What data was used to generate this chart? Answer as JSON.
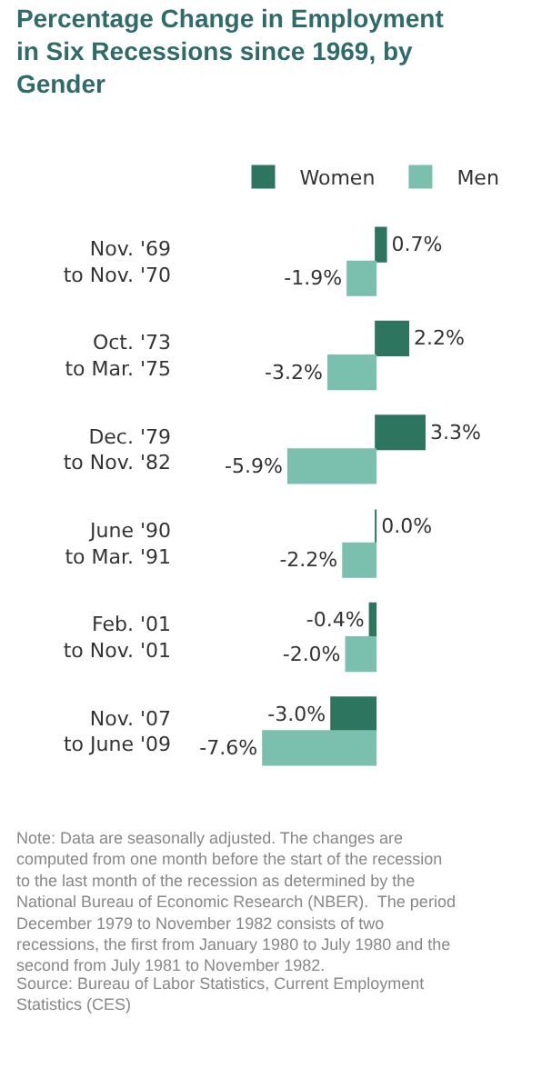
{
  "chart_data": {
    "type": "bar",
    "orientation": "horizontal",
    "title": "Percentage Change in Employment\nin Six Recessions since 1969, by\nGender",
    "categories": [
      "Nov. '69\nto Nov. '70",
      "Oct. '73\nto Mar. '75",
      "Dec. '79\nto Nov. '82",
      "June '90\nto Mar. '91",
      "Feb. '01\nto Nov. '01",
      "Nov. '07\nto June '09"
    ],
    "series": [
      {
        "name": "Women",
        "color": "#2e7560",
        "values": [
          0.7,
          2.2,
          3.3,
          0.0,
          -0.4,
          -3.0
        ],
        "value_labels": [
          "0.7%",
          "2.2%",
          "3.3%",
          "0.0%",
          "-0.4%",
          "-3.0%"
        ]
      },
      {
        "name": "Men",
        "color": "#7bbfae",
        "values": [
          -1.9,
          -3.2,
          -5.9,
          -2.2,
          -2.0,
          -7.6
        ],
        "value_labels": [
          "-1.9%",
          "-3.2%",
          "-5.9%",
          "-2.2%",
          "-2.0%",
          "-7.6%"
        ]
      }
    ],
    "legend": "top",
    "annotations": [
      "Note: Data are seasonally adjusted. The changes are\ncomputed from one month before the start of the recession\nto the last month of the recession as determined by the\nNational Bureau of Economic Research (NBER).  The period\nDecember 1979 to November 1982 consists of two\nrecessions, the first from January 1980 to July 1980 and the\nsecond from July 1981 to November 1982.",
      "Source: Bureau of Labor Statistics, Current Employment\nStatistics (CES)"
    ]
  }
}
